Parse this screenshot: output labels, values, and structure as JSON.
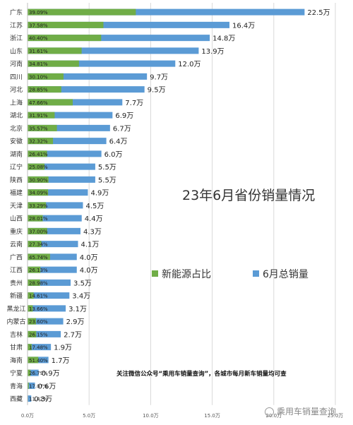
{
  "chart_data": {
    "type": "bar",
    "orientation": "horizontal",
    "stacked": true,
    "title": "23年6月省份销量情况",
    "categories": [
      "广东",
      "江苏",
      "浙江",
      "山东",
      "河南",
      "四川",
      "河北",
      "上海",
      "湖北",
      "北京",
      "安徽",
      "湖南",
      "辽宁",
      "陕西",
      "福建",
      "天津",
      "山西",
      "重庆",
      "云南",
      "广西",
      "江西",
      "贵州",
      "新疆",
      "黑龙江",
      "内蒙古",
      "吉林",
      "甘肃",
      "海南",
      "宁夏",
      "青海",
      "西藏"
    ],
    "total_values": [
      22.5,
      16.4,
      14.8,
      13.9,
      12.0,
      9.7,
      9.5,
      7.7,
      6.9,
      6.7,
      6.4,
      6.0,
      5.5,
      5.5,
      4.9,
      4.5,
      4.4,
      4.3,
      4.1,
      4.0,
      4.0,
      3.5,
      3.4,
      3.1,
      2.9,
      2.7,
      1.9,
      1.7,
      0.9,
      0.6,
      0.3
    ],
    "total_labels": [
      "22.5万",
      "16.4万",
      "14.8万",
      "13.9万",
      "12.0万",
      "9.7万",
      "9.5万",
      "7.7万",
      "6.9万",
      "6.7万",
      "6.4万",
      "6.0万",
      "5.5万",
      "5.5万",
      "4.9万",
      "4.5万",
      "4.4万",
      "4.3万",
      "4.1万",
      "4.0万",
      "4.0万",
      "3.5万",
      "3.4万",
      "3.1万",
      "2.9万",
      "2.7万",
      "1.9万",
      "1.7万",
      "0.9万",
      "0.6万",
      "0.3万"
    ],
    "nev_share_percent": [
      39.09,
      37.58,
      40.4,
      31.61,
      34.81,
      30.1,
      28.85,
      47.66,
      31.91,
      35.57,
      32.32,
      26.41,
      25.08,
      30.9,
      34.09,
      33.29,
      28.01,
      37.0,
      27.34,
      45.74,
      26.13,
      28.98,
      14.61,
      13.66,
      23.6,
      26.15,
      17.48,
      51.4,
      26.79,
      17.07,
      11.42
    ],
    "share_labels": [
      "39.09%",
      "37.58%",
      "40.40%",
      "31.61%",
      "34.81%",
      "30.10%",
      "28.85%",
      "47.66%",
      "31.91%",
      "35.57%",
      "32.32%",
      "26.41%",
      "25.08%",
      "30.90%",
      "34.09%",
      "33.29%",
      "28.01%",
      "37.00%",
      "27.34%",
      "45.74%",
      "26.13%",
      "28.98%",
      "14.61%",
      "13.66%",
      "23.60%",
      "26.15%",
      "17.48%",
      "51.40%",
      "26.79%",
      "17.07%",
      "11.42%"
    ],
    "xlim": [
      0,
      25
    ],
    "x_ticks": [
      0,
      5,
      10,
      15,
      20,
      25
    ],
    "x_tick_labels": [
      "0.0万",
      "5.0万",
      "10.0万",
      "15.0万",
      "20.0万",
      "25.0万"
    ],
    "series": [
      {
        "name": "新能源占比",
        "color": "#70ad47"
      },
      {
        "name": "6月总销量",
        "color": "#5b9bd5"
      }
    ],
    "grid": true,
    "legend_position": "center-right"
  },
  "notice": "关注微信公众号“乘用车销量查询”，各城市每月新车销量均可查",
  "brand": "乘用车销量查询"
}
